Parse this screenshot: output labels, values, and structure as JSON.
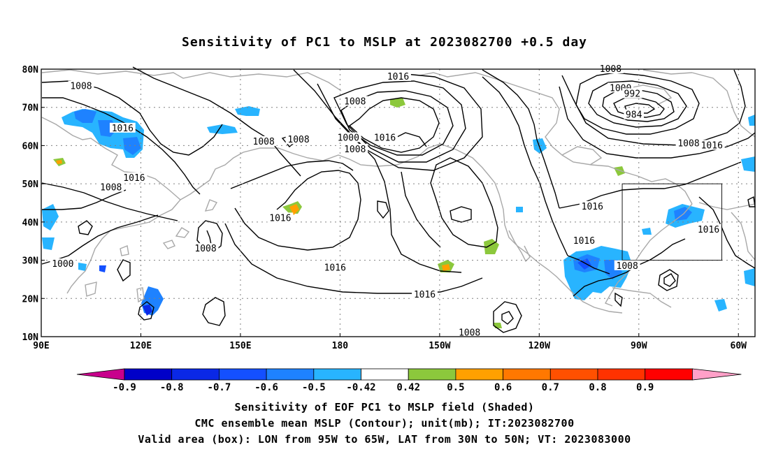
{
  "title": "Sensitivity of PC1 to MSLP at 2023082700 +0.5 day",
  "lat_labels": [
    "80N",
    "70N",
    "60N",
    "50N",
    "40N",
    "30N",
    "20N",
    "10N"
  ],
  "lon_labels": [
    "90E",
    "120E",
    "150E",
    "180",
    "150W",
    "120W",
    "90W",
    "60W"
  ],
  "contour_labels": [
    {
      "text": "1008",
      "lon": 102,
      "lat": 75.5
    },
    {
      "text": "1016",
      "lon": 114.5,
      "lat": 64.5
    },
    {
      "text": "1016",
      "lon": 118,
      "lat": 51.5
    },
    {
      "text": "1008",
      "lon": 111,
      "lat": 49
    },
    {
      "text": "1008",
      "lon": 157,
      "lat": 61
    },
    {
      "text": "1008",
      "lon": 167.5,
      "lat": 61.5
    },
    {
      "text": "1016",
      "lon": 162,
      "lat": 41
    },
    {
      "text": "1008",
      "lon": 139.5,
      "lat": 33
    },
    {
      "text": "1000",
      "lon": 96.5,
      "lat": 29
    },
    {
      "text": "1008",
      "lon": 184.5,
      "lat": 71.5
    },
    {
      "text": "1000",
      "lon": 182.5,
      "lat": 62
    },
    {
      "text": "1008",
      "lon": 184.5,
      "lat": 59
    },
    {
      "text": "1016",
      "lon": 193.5,
      "lat": 62
    },
    {
      "text": "1016",
      "lon": 197.5,
      "lat": 78
    },
    {
      "text": "1016",
      "lon": 178.5,
      "lat": 28
    },
    {
      "text": "1016",
      "lon": 205.5,
      "lat": 21
    },
    {
      "text": "1008",
      "lon": 219,
      "lat": 11
    },
    {
      "text": "1016",
      "lon": 253.5,
      "lat": 35
    },
    {
      "text": "1016",
      "lon": 256,
      "lat": 44
    },
    {
      "text": "1008",
      "lon": 261.5,
      "lat": 80
    },
    {
      "text": "1000",
      "lon": 264.5,
      "lat": 75
    },
    {
      "text": "992",
      "lon": 268,
      "lat": 73.5
    },
    {
      "text": "984",
      "lon": 268.5,
      "lat": 68
    },
    {
      "text": "1008",
      "lon": 285,
      "lat": 60.5
    },
    {
      "text": "1016",
      "lon": 292,
      "lat": 60
    },
    {
      "text": "1008",
      "lon": 266.5,
      "lat": 28.5
    },
    {
      "text": "1016",
      "lon": 291,
      "lat": 38
    }
  ],
  "colorbar": {
    "labels": [
      "-0.9",
      "-0.8",
      "-0.7",
      "-0.6",
      "-0.5",
      "-0.42",
      "0.42",
      "0.5",
      "0.6",
      "0.7",
      "0.8",
      "0.9"
    ],
    "colors": [
      "#c8008c",
      "#0000c8",
      "#0a28e6",
      "#1450ff",
      "#1e82ff",
      "#28b4ff",
      "#00c8ff",
      "#ffffff",
      "#8cc83c",
      "#ffa000",
      "#ff7800",
      "#ff5000",
      "#ff3200",
      "#ff0000",
      "#ffa0c8"
    ]
  },
  "captions": [
    "Sensitivity of EOF PC1 to MSLP field (Shaded)",
    "CMC ensemble mean MSLP (Contour); unit(mb); IT:2023082700",
    "Valid area (box): LON from 95W to 65W, LAT from 30N to 50N; VT: 2023083000"
  ],
  "valid_box": {
    "lon_min": 265,
    "lon_max": 295,
    "lat_min": 30,
    "lat_max": 50
  },
  "map": {
    "lon_min": 90,
    "lon_max": 305,
    "lat_min": 10,
    "lat_max": 80
  }
}
